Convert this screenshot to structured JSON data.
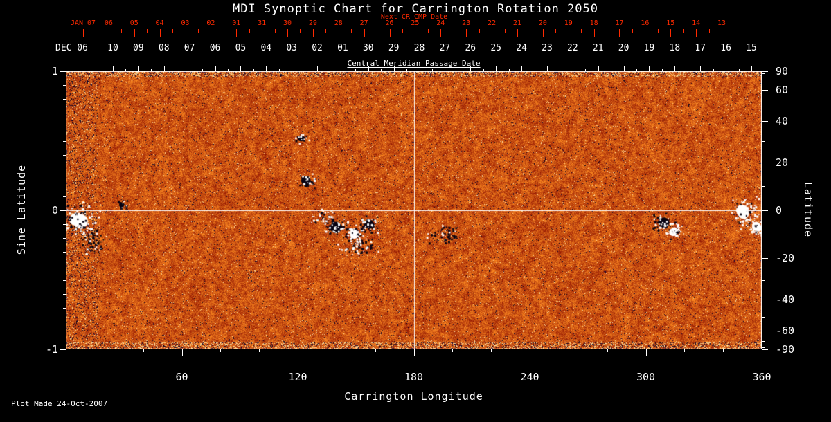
{
  "title": "MDI Synoptic Chart for Carrington Rotation 2050",
  "footer": {
    "plot_made": "Plot Made 24-Oct-2007"
  },
  "colors": {
    "background": "#000000",
    "text": "#ffffff",
    "red_axis": "#ff2a00",
    "frame": "#ffffff"
  },
  "chart_data": {
    "type": "heatmap",
    "title": "MDI Synoptic Chart for Carrington Rotation 2050",
    "description": "Solar photospheric magnetogram synoptic map for Carrington rotation 2050: orange-red granular noise field with white crosshair lines at longitude 180 and sine latitude 0, speckled polar edge bands, and bipolar active regions shown as black (negative) and white (positive) patches.",
    "x_axis": {
      "label": "Carrington Longitude",
      "range": [
        0,
        360
      ],
      "major_ticks": [
        60,
        120,
        180,
        240,
        300,
        360
      ],
      "minor_step": 20
    },
    "y_axis_left": {
      "label": "Sine Latitude",
      "range": [
        -1,
        1
      ],
      "major_ticks": [
        1,
        0,
        -1
      ],
      "minor_step": 0.1
    },
    "y_axis_right": {
      "label": "Latitude",
      "major_ticks": [
        90,
        60,
        40,
        20,
        0,
        -20,
        -40,
        -60,
        -90
      ],
      "minor_ticks": [
        80,
        70,
        50,
        30,
        10,
        -10,
        -30,
        -50,
        -70,
        -80
      ]
    },
    "top_axis_next_cr": {
      "label": "Next CR CMP Date",
      "labels": [
        "JAN 07",
        "06",
        "05",
        "04",
        "03",
        "02",
        "01",
        "31",
        "30",
        "29",
        "28",
        "27",
        "26",
        "25",
        "24",
        "23",
        "22",
        "21",
        "20",
        "19",
        "18",
        "17",
        "16",
        "15",
        "14",
        "13"
      ]
    },
    "top_axis_cmp": {
      "label": "Central Meridian Passage Date",
      "era_label": "DEC 06",
      "labels": [
        "10",
        "09",
        "08",
        "07",
        "06",
        "05",
        "04",
        "03",
        "02",
        "01",
        "30",
        "29",
        "28",
        "27",
        "26",
        "25",
        "24",
        "23",
        "22",
        "21",
        "20",
        "19",
        "18",
        "17",
        "16",
        "15"
      ]
    },
    "crosshair": {
      "longitude": 180,
      "sine_latitude": 0
    },
    "palette": {
      "base_dark_rgb": [
        140,
        15,
        0
      ],
      "base_bright_rgb": [
        255,
        140,
        34
      ],
      "speckle_dark_rgb": [
        14,
        4,
        40
      ],
      "speckle_light_rgb": [
        255,
        233,
        176
      ],
      "region_black": "#070312",
      "region_white": "#ffffff"
    },
    "active_regions": [
      {
        "lon": 7,
        "slat": -0.07,
        "core": "white",
        "core_size": 15,
        "dark": 40,
        "white": 70,
        "spread_lon": 13,
        "spread_slat": 0.17
      },
      {
        "lon": 15,
        "slat": -0.22,
        "core": "none",
        "core_size": 0,
        "dark": 55,
        "white": 12,
        "spread_lon": 11,
        "spread_slat": 0.12
      },
      {
        "lon": 29,
        "slat": 0.04,
        "core": "dark",
        "core_size": 5,
        "dark": 16,
        "white": 5,
        "spread_lon": 4,
        "spread_slat": 0.05
      },
      {
        "lon": 122,
        "slat": 0.52,
        "core": "dark",
        "core_size": 6,
        "dark": 14,
        "white": 12,
        "spread_lon": 5,
        "spread_slat": 0.06
      },
      {
        "lon": 124,
        "slat": 0.21,
        "core": "dark",
        "core_size": 9,
        "dark": 26,
        "white": 14,
        "spread_lon": 6,
        "spread_slat": 0.07
      },
      {
        "lon": 140,
        "slat": -0.12,
        "core": "dark",
        "core_size": 12,
        "dark": 45,
        "white": 30,
        "spread_lon": 8,
        "spread_slat": 0.09
      },
      {
        "lon": 149,
        "slat": -0.17,
        "core": "white",
        "core_size": 10,
        "dark": 25,
        "white": 55,
        "spread_lon": 8,
        "spread_slat": 0.09
      },
      {
        "lon": 157,
        "slat": -0.1,
        "core": "dark",
        "core_size": 9,
        "dark": 40,
        "white": 25,
        "spread_lon": 7,
        "spread_slat": 0.08
      },
      {
        "lon": 151,
        "slat": -0.26,
        "core": "none",
        "core_size": 0,
        "dark": 35,
        "white": 30,
        "spread_lon": 14,
        "spread_slat": 0.1
      },
      {
        "lon": 133,
        "slat": -0.05,
        "core": "none",
        "core_size": 0,
        "dark": 20,
        "white": 25,
        "spread_lon": 9,
        "spread_slat": 0.1
      },
      {
        "lon": 196,
        "slat": -0.16,
        "core": "none",
        "core_size": 0,
        "dark": 40,
        "white": 10,
        "spread_lon": 15,
        "spread_slat": 0.11
      },
      {
        "lon": 309,
        "slat": -0.08,
        "core": "dark",
        "core_size": 11,
        "dark": 35,
        "white": 22,
        "spread_lon": 8,
        "spread_slat": 0.09
      },
      {
        "lon": 315,
        "slat": -0.15,
        "core": "white",
        "core_size": 8,
        "dark": 12,
        "white": 35,
        "spread_lon": 7,
        "spread_slat": 0.07
      },
      {
        "lon": 351,
        "slat": -0.02,
        "core": "white",
        "core_size": 17,
        "dark": 14,
        "white": 90,
        "spread_lon": 10,
        "spread_slat": 0.16
      },
      {
        "lon": 357,
        "slat": -0.12,
        "core": "white",
        "core_size": 9,
        "dark": 6,
        "white": 40,
        "spread_lon": 5,
        "spread_slat": 0.08
      }
    ]
  }
}
